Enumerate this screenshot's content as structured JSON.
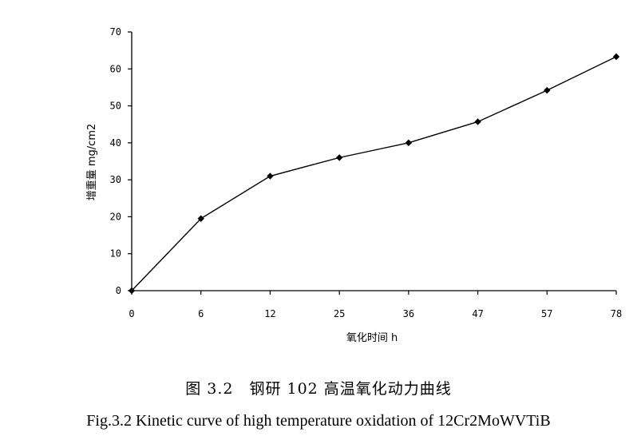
{
  "chart_data": {
    "type": "line",
    "categories": [
      "0",
      "6",
      "12",
      "25",
      "36",
      "47",
      "57",
      "78"
    ],
    "series": [
      {
        "values": [
          0,
          19.5,
          31,
          36,
          40,
          45.7,
          54.2,
          63.3
        ]
      }
    ],
    "xlabel": "氧化时间 h",
    "ylabel": "增重量 mg/cm2",
    "ylim": [
      0,
      70
    ],
    "yticks": [
      0,
      10,
      20,
      30,
      40,
      50,
      60,
      70
    ],
    "grid": false,
    "marker": "diamond",
    "color": "#000000"
  },
  "caption": {
    "chinese": "图 3.2　钢研 102 高温氧化动力曲线",
    "english": "Fig.3.2 Kinetic curve of high temperature oxidation of 12Cr2MoWVTiB"
  }
}
